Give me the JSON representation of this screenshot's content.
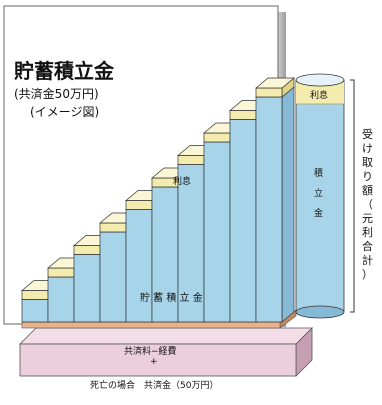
{
  "title": "貯蓄積立金",
  "subtitle_1": "(共済金50万円)",
  "subtitle_2": "(イメージ図)",
  "labels": {
    "interest_small": "利息",
    "interest_cylinder": "利息",
    "savings_bars": "貯 蓄 積 立 金",
    "fee_line": "共済料−経費",
    "plus": "+",
    "base": "死亡の場合　共済金（50万円）"
  },
  "cylinder_chars": [
    "積",
    "立",
    "金"
  ],
  "right_label_chars": [
    "受",
    "け",
    "取",
    "り",
    "額",
    "（",
    "元",
    "利",
    "合",
    "計",
    "）"
  ],
  "steps": [
    {
      "step": 1,
      "savings": 1,
      "interest": 0.4
    },
    {
      "step": 2,
      "savings": 2,
      "interest": 0.4
    },
    {
      "step": 3,
      "savings": 3,
      "interest": 0.4
    },
    {
      "step": 4,
      "savings": 4,
      "interest": 0.4
    },
    {
      "step": 5,
      "savings": 5,
      "interest": 0.4
    },
    {
      "step": 6,
      "savings": 6,
      "interest": 0.4
    },
    {
      "step": 7,
      "savings": 7,
      "interest": 0.4
    },
    {
      "step": 8,
      "savings": 8,
      "interest": 0.4
    },
    {
      "step": 9,
      "savings": 9,
      "interest": 0.4
    },
    {
      "step": 10,
      "savings": 10,
      "interest": 0.4
    }
  ],
  "colors": {
    "bar_blue": "#a8d4ea",
    "bar_blue_dark": "#86b9d6",
    "interest_yellow": "#f4ecae",
    "interest_yellow_dark": "#e0d488",
    "fee_orange": "#e8b28a",
    "base_pink": "#eccfdc",
    "base_pink_dark": "#d9b4c6",
    "back_wall": "#ffffff",
    "outline": "#333333"
  }
}
